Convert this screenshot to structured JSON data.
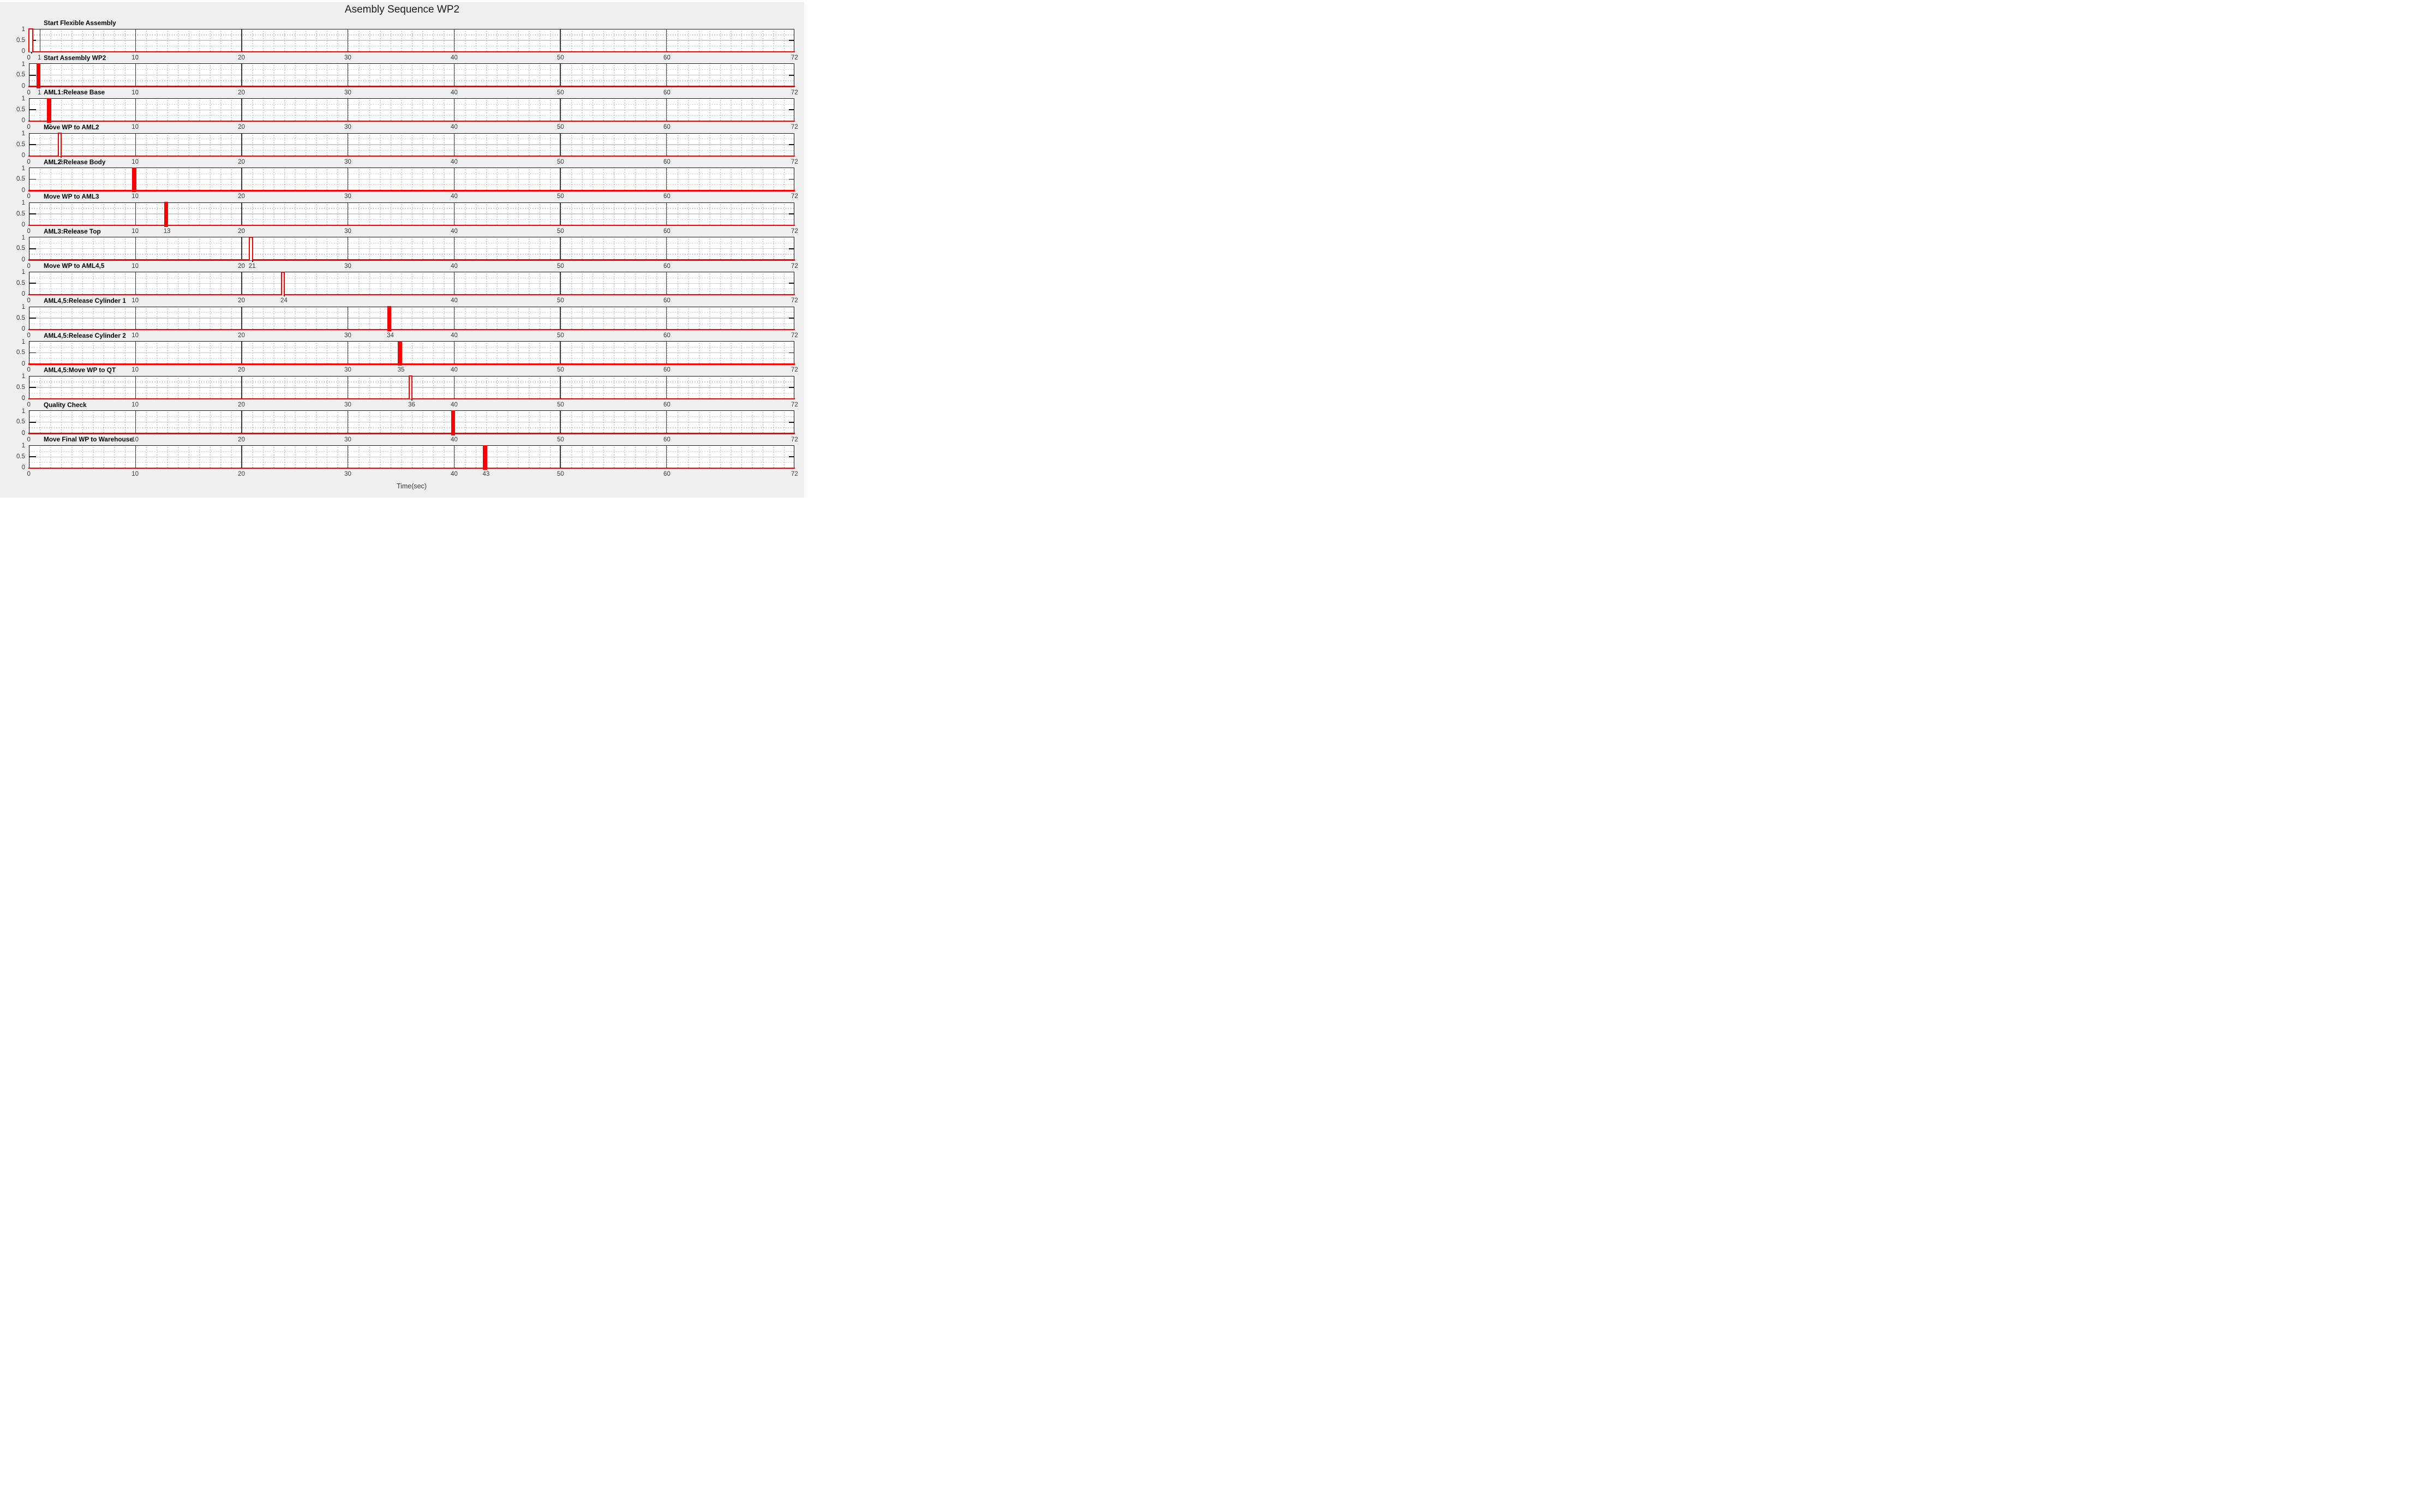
{
  "chart_data": {
    "type": "line",
    "subtype": "digital-pulse-timing-sequence",
    "title": "Asembly Sequence WP2",
    "xlabel": "Time(sec)",
    "xlim": [
      0,
      72
    ],
    "ylim": [
      0,
      1
    ],
    "yticks": [
      0,
      0.5,
      1
    ],
    "yticklabels": [
      "1",
      "0.5",
      "0"
    ],
    "grid": "major vertical grid at x-ticks, solid light line at y=0.5, dotted minor grid (x every 1 sec, y at 0.25 and 0.75)",
    "legend": "none",
    "series_color": "#ff0000",
    "subplots": [
      {
        "title": "Start Flexible Assembly",
        "pulse_time": 0,
        "pulse_style": "hollow",
        "xticks": [
          0,
          1,
          10,
          20,
          30,
          40,
          50,
          60,
          72
        ]
      },
      {
        "title": "Start Assembly WP2",
        "pulse_time": 1,
        "pulse_style": "filled",
        "xticks": [
          0,
          1,
          10,
          20,
          30,
          40,
          50,
          60,
          72
        ]
      },
      {
        "title": "AML1:Release Base",
        "pulse_time": 2,
        "pulse_style": "filled",
        "xticks": [
          0,
          2,
          10,
          20,
          30,
          40,
          50,
          60,
          72
        ]
      },
      {
        "title": "Move WP to AML2",
        "pulse_time": 3,
        "pulse_style": "hollow",
        "xticks": [
          0,
          3,
          10,
          20,
          30,
          40,
          50,
          60,
          72
        ]
      },
      {
        "title": "AML2:Release Body",
        "pulse_time": 10,
        "pulse_style": "filled",
        "xticks": [
          0,
          10,
          20,
          30,
          40,
          50,
          60,
          72
        ]
      },
      {
        "title": "Move WP to AML3",
        "pulse_time": 13,
        "pulse_style": "filled",
        "xticks": [
          0,
          10,
          13,
          20,
          30,
          40,
          50,
          60,
          72
        ]
      },
      {
        "title": "AML3:Release Top",
        "pulse_time": 21,
        "pulse_style": "hollow",
        "xticks": [
          0,
          10,
          20,
          21,
          30,
          40,
          50,
          60,
          72
        ]
      },
      {
        "title": "Move WP to AML4,5",
        "pulse_time": 24,
        "pulse_style": "hollow",
        "xticks": [
          0,
          10,
          20,
          24,
          40,
          50,
          60,
          72
        ]
      },
      {
        "title": "AML4,5:Release Cylinder 1",
        "pulse_time": 34,
        "pulse_style": "filled",
        "xticks": [
          0,
          10,
          20,
          30,
          34,
          40,
          50,
          60,
          72
        ]
      },
      {
        "title": "AML4,5:Release Cylinder 2",
        "pulse_time": 35,
        "pulse_style": "filled",
        "xticks": [
          0,
          10,
          20,
          30,
          35,
          40,
          50,
          60,
          72
        ]
      },
      {
        "title": "AML4,5:Move WP to QT",
        "pulse_time": 36,
        "pulse_style": "hollow",
        "xticks": [
          0,
          10,
          20,
          30,
          36,
          40,
          50,
          60,
          72
        ]
      },
      {
        "title": "Quality Check",
        "pulse_time": 40,
        "pulse_style": "filled",
        "xticks": [
          0,
          10,
          20,
          30,
          40,
          50,
          60,
          72
        ]
      },
      {
        "title": "Move Final WP to Warehouse",
        "pulse_time": 43,
        "pulse_style": "filled",
        "xticks": [
          0,
          10,
          20,
          30,
          40,
          43,
          50,
          60,
          72
        ]
      }
    ]
  },
  "colors": {
    "signal_red": "#ff0000",
    "panel_background": "#efefef",
    "plot_background": "#ffffff",
    "axes_border": "#161616",
    "major_grid_vertical": "#3c3c3c",
    "half_line": "#cdcdcd",
    "minor_dots": "#ababab",
    "tick_label": "#3d3d3d"
  }
}
